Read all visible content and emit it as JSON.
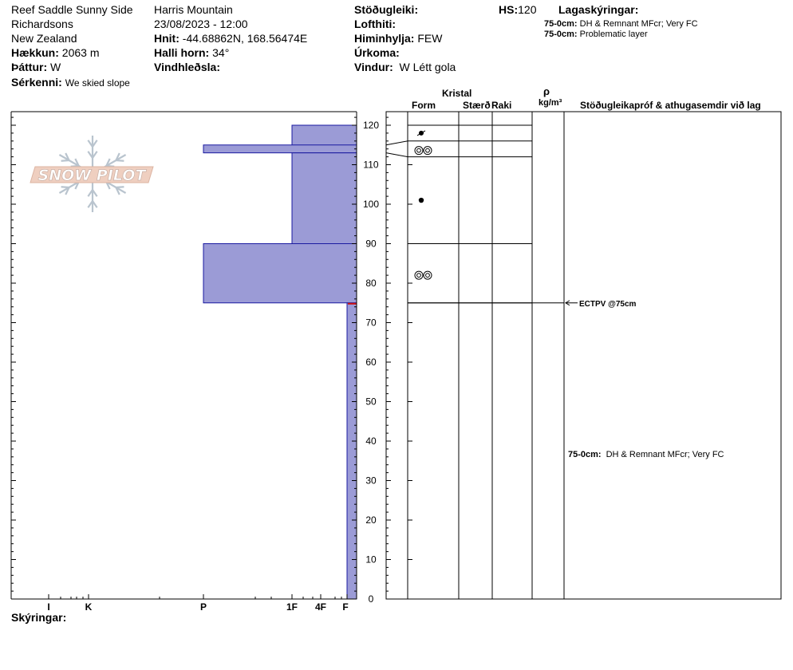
{
  "header": {
    "location": "Reef Saddle Sunny Side",
    "range": "Richardsons",
    "country": "New Zealand",
    "elevation_label": "Hækkun:",
    "elevation_value": "2063 m",
    "aspect_label": "Þáttur:",
    "aspect_value": "W",
    "features_label": "Sérkenni:",
    "features_value": "We skied slope",
    "observer": "Harris Mountain",
    "datetime": "23/08/2023 - 12:00",
    "coords_label": "Hnit:",
    "coords_value": "-44.68862N, 168.56474E",
    "slope_label": "Halli horn:",
    "slope_value": "34°",
    "wind_loading_label": "Vindhleðsla:",
    "stability_label": "Stöðugleiki:",
    "air_temp_label": "Lofthiti:",
    "sky_label": "Himinhylja:",
    "sky_value": "FEW",
    "precip_label": "Úrkoma:",
    "wind_label": "Vindur:",
    "wind_value": "W Létt gola",
    "hs_label": "HS:",
    "hs_value": "120",
    "layer_notes_label": "Lagaskýringar:",
    "layer_notes": [
      {
        "range": "75-0cm:",
        "text": "DH & Remnant MFcr; Very FC"
      },
      {
        "range": "75-0cm:",
        "text": "Problematic layer"
      }
    ]
  },
  "logo_text": "SNOW PILOT",
  "column_headers": {
    "crystal": "Kristal",
    "form": "Form",
    "size": "Stærð",
    "moisture": "Raki",
    "rho": "ρ",
    "density_unit": "kg/m³",
    "tests": "Stöðugleikapróf & athugasemdir við lag"
  },
  "footer": {
    "comments_label": "Skýringar:"
  },
  "chart_data": {
    "type": "bar",
    "title": "",
    "xlabel": "",
    "ylabel": "",
    "ylim": [
      0,
      120
    ],
    "y_ticks": [
      0,
      10,
      20,
      30,
      40,
      50,
      60,
      70,
      80,
      90,
      100,
      110,
      120
    ],
    "hardness_ticks": [
      "I",
      "K",
      "P",
      "1F",
      "4F",
      "F"
    ],
    "bar_color": "#9b9bd6",
    "bar_stroke": "#1a1aa0",
    "layers": [
      {
        "top": 120,
        "bottom": 113,
        "hardness": "1F",
        "grain": "rounding-decomposing",
        "grain_height": 118
      },
      {
        "top": 115,
        "bottom": 113,
        "hardness": "P"
      },
      {
        "top": 113,
        "bottom": 90,
        "hardness": "1F",
        "grain": "melt-freeze",
        "grain_height": 101
      },
      {
        "top": 90,
        "bottom": 75,
        "hardness": "P",
        "grain": "depth-hoar",
        "grain_height": 82
      },
      {
        "top": 75,
        "bottom": 0,
        "hardness": "F"
      }
    ],
    "layer_lines": [
      {
        "left_y": 120,
        "right_y": 120
      },
      {
        "left_y": 115,
        "right_y": 116
      },
      {
        "left_y": 112,
        "right_y": 112
      },
      {
        "left_y": 90,
        "right_y": 90
      },
      {
        "left_y": 75,
        "right_y": 75
      }
    ],
    "extra_grain": {
      "grain": "depth-hoar",
      "y": 113
    },
    "tests": [
      {
        "label": "ECTPV @75cm",
        "y": 75
      }
    ],
    "layer_comments": [
      {
        "range": "75-0cm:",
        "text": "DH & Remnant MFcr; Very FC",
        "y": 36
      }
    ]
  }
}
